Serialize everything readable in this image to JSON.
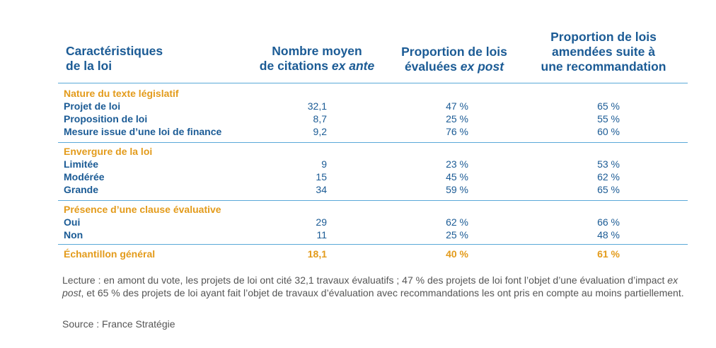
{
  "headers": {
    "col0_line1": "Caractéristiques",
    "col0_line2": "de la loi",
    "col1_line1": "Nombre moyen",
    "col1_line2_a": "de citations ",
    "col1_line2_b": "ex ante",
    "col2_line1": "Proportion de lois",
    "col2_line2_a": "évaluées ",
    "col2_line2_b": "ex post",
    "col3_line1": "Proportion de lois",
    "col3_line2": "amendées suite à",
    "col3_line3": "une recommandation"
  },
  "sections": [
    {
      "title": "Nature du texte législatif",
      "rows": [
        {
          "label": "Projet de loi",
          "v1": "32,1",
          "v2": "47 %",
          "v3": "65 %"
        },
        {
          "label": "Proposition de loi",
          "v1": "8,7",
          "v2": "25 %",
          "v3": "55 %"
        },
        {
          "label": "Mesure issue d’une loi de finance",
          "v1": "9,2",
          "v2": "76 %",
          "v3": "60 %"
        }
      ]
    },
    {
      "title": "Envergure de la loi",
      "rows": [
        {
          "label": "Limitée",
          "v1": "9",
          "v2": "23 %",
          "v3": "53 %"
        },
        {
          "label": "Modérée",
          "v1": "15",
          "v2": "45 %",
          "v3": "62 %"
        },
        {
          "label": "Grande",
          "v1": "34",
          "v2": "59 %",
          "v3": "65 %"
        }
      ]
    },
    {
      "title": "Présence d’une clause évaluative",
      "rows": [
        {
          "label": "Oui",
          "v1": "29",
          "v2": "62 %",
          "v3": "66 %"
        },
        {
          "label": "Non",
          "v1": "11",
          "v2": "25 %",
          "v3": "48 %"
        }
      ]
    }
  ],
  "total": {
    "label": "Échantillon général",
    "v1": "18,1",
    "v2": "40 %",
    "v3": "61 %"
  },
  "note": {
    "p1": "Lecture : en amont du vote, les projets de loi ont cité 32,1 travaux évaluatifs ; 47 % des projets de loi font l’objet d’une évaluation d’impact ",
    "p1_it": "ex post",
    "p2": ", et 65 % des projets de loi ayant fait l’objet de travaux d’évaluation avec recommandations les ont pris en compte au moins partiellement."
  },
  "source": "Source : France Stratégie",
  "colors": {
    "title_blue": "#1b5b95",
    "accent_orange": "#e39b1b",
    "rule": "#5aa9d8"
  }
}
